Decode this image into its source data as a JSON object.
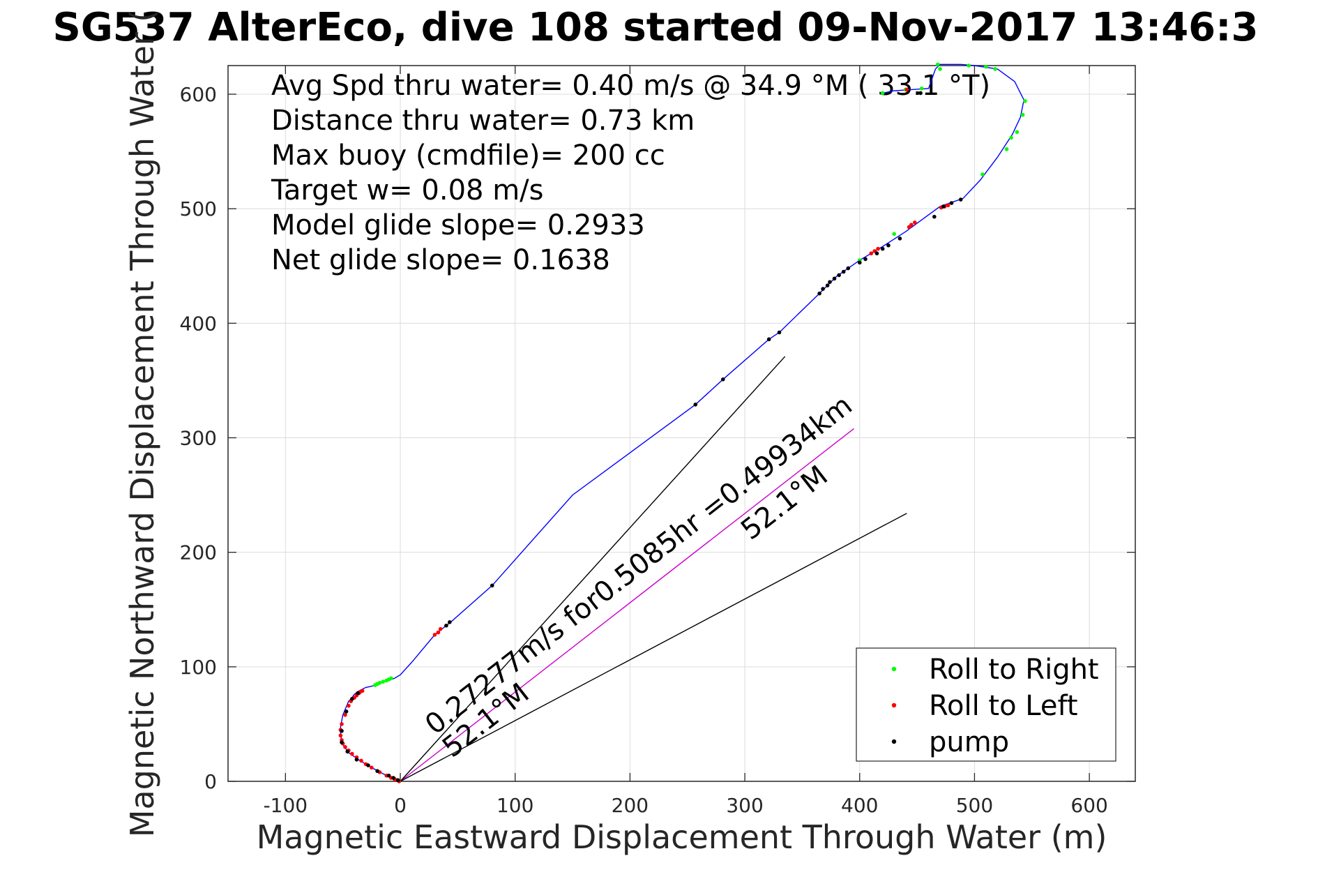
{
  "chart_data": {
    "type": "scatter",
    "title": "SG537 AlterEco, dive 108 started 09-Nov-2017 13:46:3",
    "xlabel": "Magnetic Eastward Displacement Through Water (m)",
    "ylabel": "Magnetic Northward Displacement Through Water (",
    "xlim": [
      -150,
      640
    ],
    "ylim": [
      0,
      625
    ],
    "xticks": [
      -100,
      0,
      100,
      200,
      300,
      400,
      500,
      600
    ],
    "yticks": [
      0,
      100,
      200,
      300,
      400,
      500,
      600
    ],
    "xtick_labels": [
      "-100",
      "0",
      "100",
      "200",
      "300",
      "400",
      "500",
      "600"
    ],
    "ytick_labels": [
      "0",
      "100",
      "200",
      "300",
      "400",
      "500",
      "600"
    ],
    "grid": true,
    "legend_position": "bottom-right",
    "annotations": [
      "Avg Spd thru water=  0.40 m/s @  34.9 °M ( 33.1 °T)",
      "Distance thru water=  0.73 km",
      "Max buoy (cmdfile)= 200 cc",
      "Target w= 0.08 m/s",
      "Model glide slope= 0.2933",
      "Net glide slope= 0.1638"
    ],
    "vector_labels": [
      {
        "text": "0.27277m/s for0.5085hr =0.49934km",
        "x": 30,
        "y": 40,
        "angle_deg": 37.9
      },
      {
        "text": "52.1°M",
        "x": 45,
        "y": 20,
        "angle_deg": 37.9
      },
      {
        "text": "52.1°M",
        "x": 305,
        "y": 210,
        "angle_deg": 37.9
      }
    ],
    "series": [
      {
        "name": "track",
        "kind": "line",
        "color": "#0000ff",
        "x": [
          0,
          -12,
          -25,
          -35,
          -45,
          -50,
          -52,
          -52,
          -50,
          -45,
          -43,
          -40,
          -36,
          -30,
          -25,
          -20,
          -15,
          -10,
          -5,
          0,
          10,
          30,
          45,
          80,
          150,
          257,
          281,
          321,
          330,
          365,
          380,
          400,
          420,
          440,
          470,
          490,
          505,
          520,
          533,
          540,
          543,
          535,
          520,
          500,
          488,
          470,
          466,
          460,
          445,
          430,
          420
        ],
        "y": [
          0,
          5,
          12,
          18,
          25,
          32,
          40,
          48,
          58,
          70,
          72,
          76,
          79,
          82,
          83,
          85,
          87,
          88,
          90,
          93,
          104,
          128,
          140,
          171,
          250,
          329,
          351,
          386,
          392,
          426,
          441,
          455,
          467,
          480,
          502,
          509,
          525,
          545,
          565,
          580,
          595,
          611,
          622,
          625,
          626,
          626,
          622,
          605,
          604,
          603,
          601
        ]
      },
      {
        "name": "Roll to Right",
        "kind": "points",
        "color": "#00ff00",
        "x": [
          -8,
          -10,
          -12,
          -15,
          -18,
          -20,
          -22,
          468,
          470,
          454,
          440,
          420,
          507,
          528,
          532,
          537,
          542,
          544,
          518,
          510,
          495,
          430,
          400
        ],
        "y": [
          90,
          89,
          88,
          87,
          86,
          85,
          84,
          626,
          622,
          605,
          604,
          601,
          530,
          552,
          562,
          567,
          582,
          594,
          622,
          624,
          625,
          478,
          455
        ]
      },
      {
        "name": "Roll to Left",
        "kind": "points",
        "color": "#ff0000",
        "x": [
          -1,
          -3,
          -5,
          -8,
          -12,
          -18,
          -25,
          -30,
          -34,
          -38,
          -42,
          -45,
          -48,
          -50,
          -51,
          -52,
          -52,
          -51,
          -48,
          -45,
          -43,
          -40,
          -38,
          -36,
          -35,
          -33,
          30,
          33,
          35,
          410,
          413,
          416,
          443,
          445,
          448,
          471,
          474,
          477,
          441
        ],
        "y": [
          0,
          1,
          2,
          3,
          5,
          8,
          12,
          15,
          18,
          21,
          24,
          27,
          30,
          33,
          36,
          40,
          45,
          50,
          58,
          66,
          70,
          73,
          75,
          77,
          78,
          79,
          128,
          130,
          133,
          461,
          463,
          465,
          484,
          486,
          488,
          501,
          502,
          503,
          604
        ]
      },
      {
        "name": "pump",
        "kind": "points",
        "color": "#000000",
        "x": [
          -2,
          -6,
          -10,
          -20,
          -28,
          -38,
          -46,
          -51,
          -51,
          -47,
          -42,
          -37,
          40,
          43,
          80,
          257,
          281,
          321,
          330,
          365,
          368,
          372,
          374,
          378,
          382,
          386,
          390,
          400,
          405,
          415,
          420,
          425,
          435,
          465,
          473,
          480,
          488,
          453
        ],
        "y": [
          1,
          3,
          5,
          9,
          14,
          19,
          26,
          34,
          44,
          61,
          72,
          77,
          136,
          139,
          171,
          329,
          351,
          386,
          392,
          426,
          430,
          433,
          436,
          439,
          442,
          445,
          448,
          453,
          456,
          461,
          465,
          468,
          474,
          493,
          502,
          505,
          508,
          601
        ]
      },
      {
        "name": "mean current vector",
        "kind": "line",
        "color": "#cc00cc",
        "x": [
          0,
          395
        ],
        "y": [
          0,
          308
        ]
      },
      {
        "name": "heading line 1",
        "kind": "line",
        "color": "#000000",
        "x": [
          0,
          335
        ],
        "y": [
          0,
          371
        ]
      },
      {
        "name": "heading line 2",
        "kind": "line",
        "color": "#000000",
        "x": [
          0,
          441
        ],
        "y": [
          0,
          234
        ]
      }
    ],
    "legend": [
      {
        "label": "Roll to Right",
        "color": "#00ff00"
      },
      {
        "label": "Roll to Left",
        "color": "#ff0000"
      },
      {
        "label": "pump",
        "color": "#000000"
      }
    ]
  }
}
